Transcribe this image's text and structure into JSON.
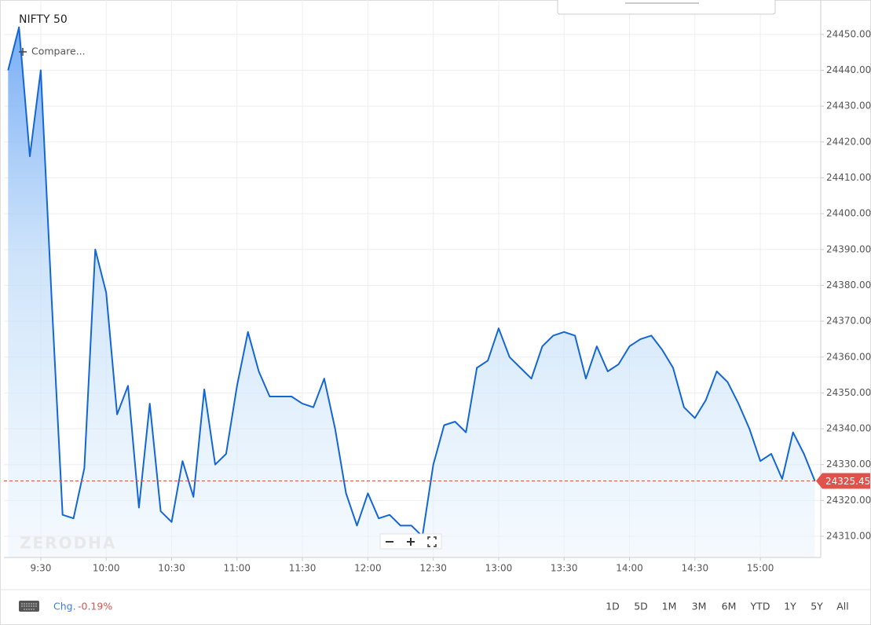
{
  "chart_data": {
    "type": "line",
    "title": "NIFTY 50",
    "x": [
      555,
      560,
      565,
      570,
      575,
      580,
      585,
      590,
      595,
      600,
      605,
      610,
      615,
      620,
      625,
      630,
      635,
      640,
      645,
      650,
      655,
      660,
      665,
      670,
      675,
      680,
      685,
      690,
      695,
      700,
      705,
      710,
      715,
      720,
      725,
      730,
      735,
      740,
      745,
      750,
      755,
      760,
      765,
      770,
      775,
      780,
      785,
      790,
      795,
      800,
      805,
      810,
      815,
      820,
      825,
      830,
      835,
      840,
      845,
      850,
      855,
      860,
      865,
      870,
      875,
      880,
      885,
      890,
      895,
      900,
      905,
      910,
      915,
      920,
      925
    ],
    "series": [
      {
        "name": "NIFTY 50",
        "color": "#1366d6",
        "values": [
          24440,
          24452,
          24416,
          24440,
          24376,
          24316,
          24315,
          24329,
          24390,
          24378,
          24344,
          24352,
          24318,
          24347,
          24317,
          24314,
          24331,
          24321,
          24351,
          24330,
          24333,
          24352,
          24367,
          24356,
          24349,
          24349,
          24349,
          24347,
          24346,
          24354,
          24340,
          24322,
          24313,
          24322,
          24315,
          24316,
          24313,
          24313,
          24310,
          24330,
          24341,
          24342,
          24339,
          24357,
          24359,
          24368,
          24360,
          24357,
          24354,
          24363,
          24366,
          24367,
          24366,
          24354,
          24363,
          24356,
          24358,
          24363,
          24365,
          24366,
          24362,
          24357,
          24346,
          24343,
          24348,
          24356,
          24353,
          24347,
          24340,
          24331,
          24333,
          24326,
          24339,
          24333,
          24325.45
        ]
      }
    ],
    "last_price": 24325.45,
    "xlim": [
      553.1,
      927.7
    ],
    "xticks": [
      {
        "value": 570,
        "label": "9:30"
      },
      {
        "value": 600,
        "label": "10:00"
      },
      {
        "value": 630,
        "label": "10:30"
      },
      {
        "value": 660,
        "label": "11:00"
      },
      {
        "value": 690,
        "label": "11:30"
      },
      {
        "value": 720,
        "label": "12:00"
      },
      {
        "value": 750,
        "label": "12:30"
      },
      {
        "value": 780,
        "label": "13:00"
      },
      {
        "value": 810,
        "label": "13:30"
      },
      {
        "value": 840,
        "label": "14:00"
      },
      {
        "value": 870,
        "label": "14:30"
      },
      {
        "value": 900,
        "label": "15:00"
      }
    ],
    "ylim": [
      24304.1,
      24459.6
    ],
    "yticks": [
      {
        "value": 24310,
        "label": "24310.00"
      },
      {
        "value": 24320,
        "label": "24320.00"
      },
      {
        "value": 24330,
        "label": "24330.00"
      },
      {
        "value": 24340,
        "label": "24340.00"
      },
      {
        "value": 24350,
        "label": "24350.00"
      },
      {
        "value": 24360,
        "label": "24360.00"
      },
      {
        "value": 24370,
        "label": "24370.00"
      },
      {
        "value": 24380,
        "label": "24380.00"
      },
      {
        "value": 24390,
        "label": "24390.00"
      },
      {
        "value": 24400,
        "label": "24400.00"
      },
      {
        "value": 24410,
        "label": "24410.00"
      },
      {
        "value": 24420,
        "label": "24420.00"
      },
      {
        "value": 24430,
        "label": "24430.00"
      },
      {
        "value": 24440,
        "label": "24440.00"
      },
      {
        "value": 24450,
        "label": "24450.00"
      }
    ],
    "grid": true
  },
  "ui": {
    "compare": "Compare...",
    "watermark": "ZERODHA",
    "change_label": "Chg.",
    "change_value": "-0.19%",
    "ranges": [
      "1D",
      "5D",
      "1M",
      "3M",
      "6M",
      "YTD",
      "1Y",
      "5Y",
      "All"
    ]
  }
}
